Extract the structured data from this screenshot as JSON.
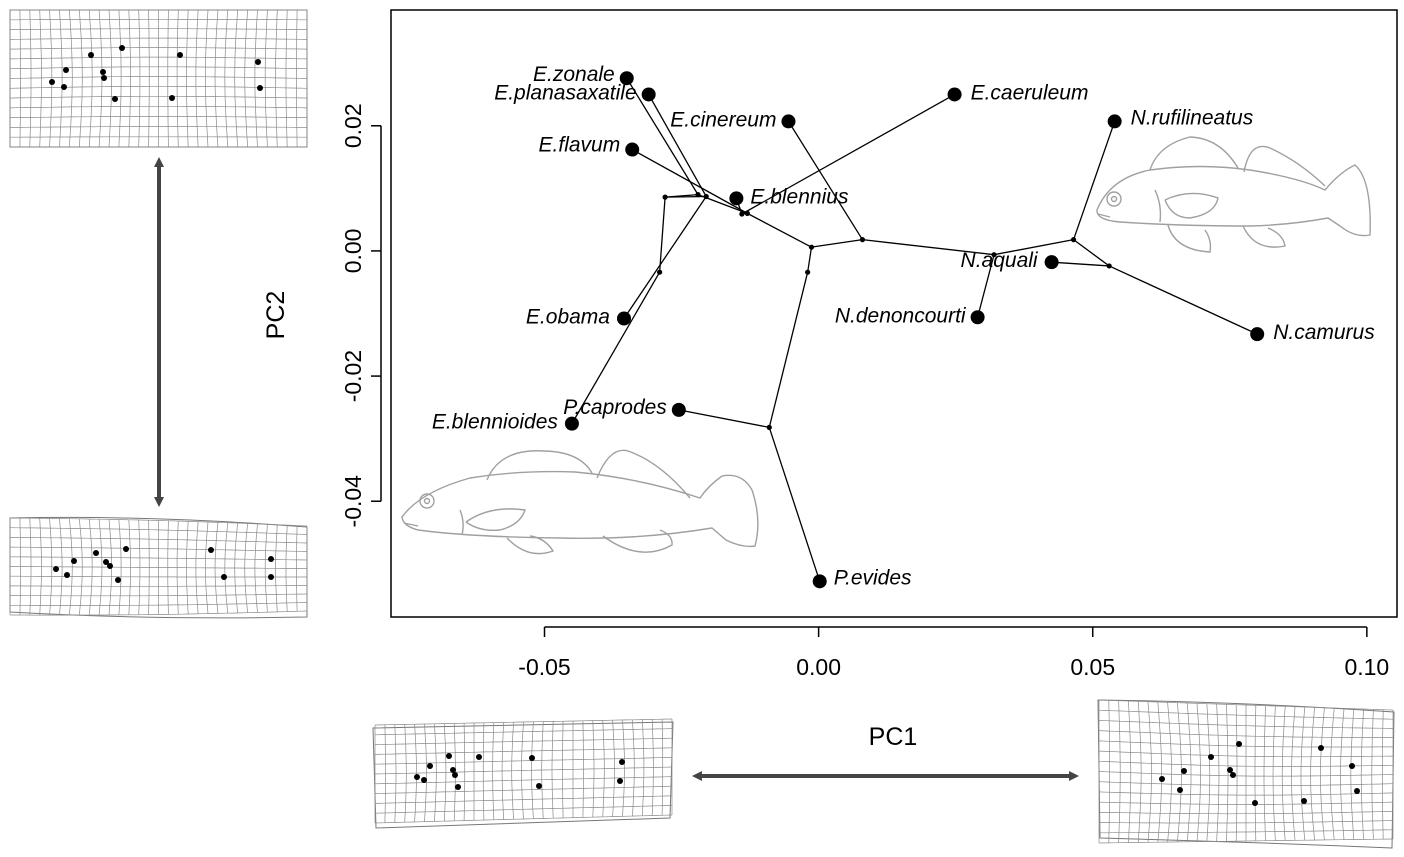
{
  "chart_data": {
    "type": "scatter",
    "title": "",
    "xlabel": "PC1",
    "ylabel": "PC2",
    "xlim": [
      -0.078,
      0.1055
    ],
    "ylim": [
      -0.0585,
      0.0385
    ],
    "xticks": [
      -0.05,
      0.0,
      0.05,
      0.1
    ],
    "yticks": [
      -0.04,
      -0.02,
      0.0,
      0.02
    ],
    "xtick_labels": [
      "-0.05",
      "0.00",
      "0.05",
      "0.10"
    ],
    "ytick_labels": [
      "-0.04",
      "-0.02",
      "0.00",
      "0.02"
    ],
    "grid": false,
    "legend": "none",
    "species": [
      {
        "label": "E.zonale",
        "x": -0.035,
        "y": 0.0276
      },
      {
        "label": "E.planasaxatile",
        "x": -0.031,
        "y": 0.025
      },
      {
        "label": "E.cinereum",
        "x": -0.0055,
        "y": 0.0207
      },
      {
        "label": "E.caeruleum",
        "x": 0.0248,
        "y": 0.025
      },
      {
        "label": "N.rufilineatus",
        "x": 0.054,
        "y": 0.0207
      },
      {
        "label": "E.flavum",
        "x": -0.034,
        "y": 0.0162
      },
      {
        "label": "E.blennius",
        "x": -0.015,
        "y": 0.0084
      },
      {
        "label": "N.aquali",
        "x": 0.0425,
        "y": -0.0018
      },
      {
        "label": "E.obama",
        "x": -0.0355,
        "y": -0.0108
      },
      {
        "label": "N.denoncourti",
        "x": 0.029,
        "y": -0.0106
      },
      {
        "label": "N.camurus",
        "x": 0.08,
        "y": -0.0133
      },
      {
        "label": "P.caprodes",
        "x": -0.0255,
        "y": -0.0254
      },
      {
        "label": "E.blennioides",
        "x": -0.045,
        "y": -0.0276
      },
      {
        "label": "P.evides",
        "x": 0.0002,
        "y": -0.0528
      }
    ],
    "internal_nodes": [
      {
        "id": "n1",
        "x": -0.0013,
        "y": 0.0006
      },
      {
        "id": "n2",
        "x": 0.008,
        "y": 0.0018
      },
      {
        "id": "n3",
        "x": -0.013,
        "y": 0.006
      },
      {
        "id": "n4",
        "x": -0.022,
        "y": 0.009
      },
      {
        "id": "n5",
        "x": -0.028,
        "y": 0.0086
      },
      {
        "id": "n6",
        "x": -0.029,
        "y": -0.0034
      },
      {
        "id": "n7",
        "x": -0.0205,
        "y": 0.0087
      },
      {
        "id": "n8",
        "x": -0.002,
        "y": -0.0034
      },
      {
        "id": "n9",
        "x": -0.009,
        "y": -0.0282
      },
      {
        "id": "n10",
        "x": 0.0465,
        "y": 0.0018
      },
      {
        "id": "n11",
        "x": 0.032,
        "y": -0.0006
      },
      {
        "id": "n12",
        "x": 0.053,
        "y": -0.0024
      },
      {
        "id": "n13",
        "x": -0.014,
        "y": 0.0059
      }
    ],
    "edges": [
      [
        "n1",
        "n2"
      ],
      [
        "n1",
        "n3"
      ],
      [
        "n1",
        "n8"
      ],
      [
        "n8",
        "n9"
      ],
      [
        "n9",
        "P.evides"
      ],
      [
        "n9",
        "P.caprodes"
      ],
      [
        "n2",
        "E.cinereum"
      ],
      [
        "n2",
        "n11"
      ],
      [
        "n11",
        "n10"
      ],
      [
        "n11",
        "N.denoncourti"
      ],
      [
        "n10",
        "N.rufilineatus"
      ],
      [
        "n10",
        "n12"
      ],
      [
        "n12",
        "N.aquali"
      ],
      [
        "n12",
        "N.camurus"
      ],
      [
        "n3",
        "n4"
      ],
      [
        "n4",
        "n5"
      ],
      [
        "n4",
        "E.zonale"
      ],
      [
        "n3",
        "E.flavum"
      ],
      [
        "n5",
        "n6"
      ],
      [
        "n5",
        "n7"
      ],
      [
        "n7",
        "E.planasaxatile"
      ],
      [
        "n7",
        "E.obama"
      ],
      [
        "n6",
        "E.blennioides"
      ],
      [
        "n13",
        "E.blennius"
      ],
      [
        "n13",
        "E.caeruleum"
      ],
      [
        "n3",
        "n13"
      ]
    ]
  }
}
